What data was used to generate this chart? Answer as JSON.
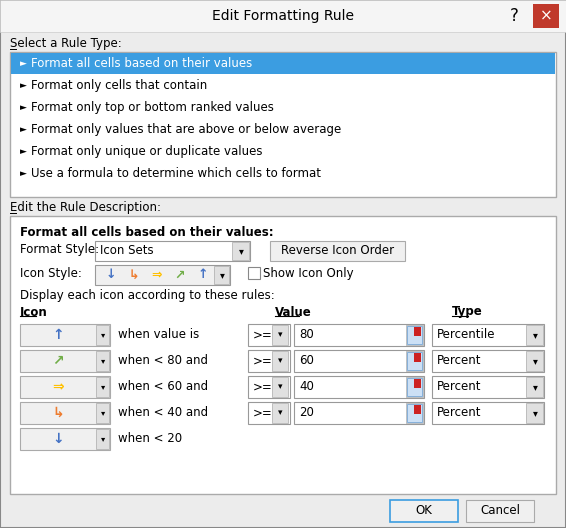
{
  "title": "Edit Formatting Rule",
  "bg_color": "#ececec",
  "white": "#ffffff",
  "blue_selected": "#3b9de1",
  "section1_label": "Select a Rule Type:",
  "rule_types": [
    "Format all cells based on their values",
    "Format only cells that contain",
    "Format only top or bottom ranked values",
    "Format only values that are above or below average",
    "Format only unique or duplicate values",
    "Use a formula to determine which cells to format"
  ],
  "section2_label": "Edit the Rule Description:",
  "format_bold": "Format all cells based on their values:",
  "format_style_label": "Format Style:",
  "format_style_value": "Icon Sets",
  "icon_style_label": "Icon Style:",
  "reverse_btn": "Reverse Icon Order",
  "show_icon_cb": "Show Icon Only",
  "display_label": "Display each icon according to these rules:",
  "col_icon": "Icon",
  "col_value": "Value",
  "col_type": "Type",
  "rows": [
    {
      "condition": "when value is",
      "op": ">=",
      "value": "80",
      "type": "Percentile"
    },
    {
      "condition": "when < 80 and",
      "op": ">=",
      "value": "60",
      "type": "Percent"
    },
    {
      "condition": "when < 60 and",
      "op": ">=",
      "value": "40",
      "type": "Percent"
    },
    {
      "condition": "when < 40 and",
      "op": ">=",
      "value": "20",
      "type": "Percent"
    },
    {
      "condition": "when < 20",
      "op": "",
      "value": "",
      "type": ""
    }
  ],
  "row_icons": [
    "↑",
    "↗",
    "⇒",
    "↳",
    "↓"
  ],
  "row_icon_colors": [
    "#4472c4",
    "#70ad47",
    "#ffc000",
    "#ed7d31",
    "#4472c4"
  ],
  "icon_style_icons": [
    "↓",
    "↳",
    "⇒",
    "↗",
    "↑"
  ],
  "icon_style_colors": [
    "#4472c4",
    "#ed7d31",
    "#ffc000",
    "#70ad47",
    "#4472c4"
  ],
  "ok_btn": "OK",
  "cancel_btn": "Cancel"
}
